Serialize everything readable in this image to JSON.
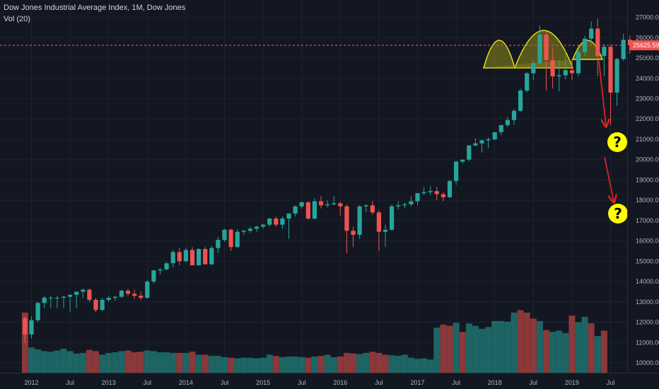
{
  "header": {
    "title": "Dow Jones Industrial Average Index, 1M, Dow Jones",
    "volume_label": "Vol (20)"
  },
  "colors": {
    "background": "#131722",
    "up": "#26a69a",
    "down": "#ef5350",
    "grid": "#1e2230",
    "price_line": "#ef5350",
    "pattern_fill": "#8f8c1a",
    "pattern_stroke": "#e6e21a",
    "arrow": "#e02020",
    "question_fill": "#ffff00"
  },
  "chart_data": {
    "type": "candlestick",
    "symbol": "Dow Jones Industrial Average Index",
    "interval": "1M",
    "y_axis": {
      "ticks": [
        10000,
        11000,
        12000,
        13000,
        14000,
        15000,
        16000,
        17000,
        18000,
        19000,
        20000,
        21000,
        22000,
        23000,
        24000,
        25000,
        26000,
        27000
      ],
      "tick_labels": [
        "10000.00",
        "11000.00",
        "12000.00",
        "13000.00",
        "14000.00",
        "15000.00",
        "16000.00",
        "17000.00",
        "18000.00",
        "19000.00",
        "20000.00",
        "21000.00",
        "22000.00",
        "23000.00",
        "24000.00",
        "25000.00",
        "26000.00",
        "27000.00"
      ]
    },
    "x_axis": {
      "labels": [
        "2012",
        "Jul",
        "2013",
        "Jul",
        "2014",
        "Jul",
        "2015",
        "Jul",
        "2016",
        "Jul",
        "2017",
        "Jul",
        "2018",
        "Jul",
        "2019",
        "Jul"
      ],
      "label_months": [
        0,
        6,
        12,
        18,
        24,
        30,
        36,
        42,
        48,
        54,
        60,
        66,
        72,
        78,
        84,
        90
      ]
    },
    "last_price": 25625.59,
    "last_price_label": "25625.59",
    "candles": [
      {
        "m": -1,
        "o": 12200,
        "h": 12300,
        "l": 11000,
        "c": 11400
      },
      {
        "m": 0,
        "o": 11400,
        "h": 12300,
        "l": 11200,
        "c": 12100
      },
      {
        "m": 1,
        "o": 12100,
        "h": 13000,
        "l": 12000,
        "c": 12950
      },
      {
        "m": 2,
        "o": 12950,
        "h": 13300,
        "l": 12700,
        "c": 13200
      },
      {
        "m": 3,
        "o": 13200,
        "h": 13300,
        "l": 12700,
        "c": 13200
      },
      {
        "m": 4,
        "o": 13200,
        "h": 13300,
        "l": 12700,
        "c": 13200
      },
      {
        "m": 5,
        "o": 13200,
        "h": 13300,
        "l": 12700,
        "c": 13250
      },
      {
        "m": 6,
        "o": 13250,
        "h": 13350,
        "l": 12500,
        "c": 13350
      },
      {
        "m": 7,
        "o": 13350,
        "h": 13500,
        "l": 12700,
        "c": 13500
      },
      {
        "m": 8,
        "o": 13500,
        "h": 13650,
        "l": 13200,
        "c": 13600
      },
      {
        "m": 9,
        "o": 13600,
        "h": 13650,
        "l": 13000,
        "c": 13100
      },
      {
        "m": 10,
        "o": 13100,
        "h": 13200,
        "l": 12500,
        "c": 12600
      },
      {
        "m": 11,
        "o": 12600,
        "h": 13200,
        "l": 12550,
        "c": 13100
      },
      {
        "m": 12,
        "o": 13100,
        "h": 13300,
        "l": 13000,
        "c": 13200
      },
      {
        "m": 13,
        "o": 13200,
        "h": 13300,
        "l": 13050,
        "c": 13250
      },
      {
        "m": 14,
        "o": 13250,
        "h": 13600,
        "l": 13200,
        "c": 13550
      },
      {
        "m": 15,
        "o": 13550,
        "h": 13650,
        "l": 13300,
        "c": 13400
      },
      {
        "m": 16,
        "o": 13400,
        "h": 13600,
        "l": 13150,
        "c": 13300
      },
      {
        "m": 17,
        "o": 13300,
        "h": 13500,
        "l": 13100,
        "c": 13200
      },
      {
        "m": 18,
        "o": 13200,
        "h": 14100,
        "l": 13150,
        "c": 14000
      },
      {
        "m": 19,
        "o": 14000,
        "h": 14550,
        "l": 13900,
        "c": 14550
      },
      {
        "m": 20,
        "o": 14550,
        "h": 14650,
        "l": 14350,
        "c": 14600
      },
      {
        "m": 21,
        "o": 14600,
        "h": 14950,
        "l": 14550,
        "c": 14900
      },
      {
        "m": 22,
        "o": 14900,
        "h": 15550,
        "l": 14700,
        "c": 15450
      },
      {
        "m": 23,
        "o": 15450,
        "h": 15650,
        "l": 14800,
        "c": 15000
      },
      {
        "m": 24,
        "o": 15000,
        "h": 15650,
        "l": 14950,
        "c": 15550
      },
      {
        "m": 25,
        "o": 15550,
        "h": 15700,
        "l": 14800,
        "c": 14800
      },
      {
        "m": 26,
        "o": 14800,
        "h": 15650,
        "l": 14800,
        "c": 15600
      },
      {
        "m": 27,
        "o": 15600,
        "h": 15700,
        "l": 14850,
        "c": 14850
      },
      {
        "m": 28,
        "o": 14850,
        "h": 15750,
        "l": 14800,
        "c": 15650
      },
      {
        "m": 29,
        "o": 15650,
        "h": 16200,
        "l": 15400,
        "c": 16050
      },
      {
        "m": 30,
        "o": 16050,
        "h": 16600,
        "l": 15950,
        "c": 16550
      },
      {
        "m": 31,
        "o": 16550,
        "h": 16600,
        "l": 15500,
        "c": 15700
      },
      {
        "m": 32,
        "o": 15700,
        "h": 16600,
        "l": 15650,
        "c": 16450
      },
      {
        "m": 33,
        "o": 16450,
        "h": 16550,
        "l": 16300,
        "c": 16500
      },
      {
        "m": 34,
        "o": 16500,
        "h": 16700,
        "l": 16400,
        "c": 16600
      },
      {
        "m": 35,
        "o": 16600,
        "h": 16750,
        "l": 16450,
        "c": 16700
      },
      {
        "m": 36,
        "o": 16700,
        "h": 16850,
        "l": 16600,
        "c": 16800
      },
      {
        "m": 37,
        "o": 16800,
        "h": 17150,
        "l": 16700,
        "c": 17100
      },
      {
        "m": 38,
        "o": 17100,
        "h": 17200,
        "l": 16700,
        "c": 16800
      },
      {
        "m": 39,
        "o": 16800,
        "h": 17200,
        "l": 16600,
        "c": 17100
      },
      {
        "m": 40,
        "o": 17100,
        "h": 17350,
        "l": 16100,
        "c": 17350
      },
      {
        "m": 41,
        "o": 17350,
        "h": 17750,
        "l": 17200,
        "c": 17700
      },
      {
        "m": 42,
        "o": 17700,
        "h": 17950,
        "l": 17600,
        "c": 17900
      },
      {
        "m": 43,
        "o": 17900,
        "h": 17950,
        "l": 17050,
        "c": 17100
      },
      {
        "m": 44,
        "o": 17100,
        "h": 18100,
        "l": 17050,
        "c": 17950
      },
      {
        "m": 45,
        "o": 17950,
        "h": 18200,
        "l": 17600,
        "c": 17750
      },
      {
        "m": 46,
        "o": 17750,
        "h": 18000,
        "l": 17650,
        "c": 17800
      },
      {
        "m": 47,
        "o": 17800,
        "h": 18200,
        "l": 17750,
        "c": 17850
      },
      {
        "m": 48,
        "o": 17850,
        "h": 17950,
        "l": 17250,
        "c": 17700
      },
      {
        "m": 49,
        "o": 17700,
        "h": 17800,
        "l": 15400,
        "c": 16500
      },
      {
        "m": 50,
        "o": 16500,
        "h": 16700,
        "l": 15700,
        "c": 16300
      },
      {
        "m": 51,
        "o": 16300,
        "h": 17750,
        "l": 16100,
        "c": 17700
      },
      {
        "m": 52,
        "o": 17700,
        "h": 17800,
        "l": 17400,
        "c": 17750
      },
      {
        "m": 53,
        "o": 17750,
        "h": 17950,
        "l": 17300,
        "c": 17400
      },
      {
        "m": 54,
        "o": 17400,
        "h": 17500,
        "l": 15500,
        "c": 16450
      },
      {
        "m": 55,
        "o": 16450,
        "h": 16800,
        "l": 15700,
        "c": 16550
      },
      {
        "m": 56,
        "o": 16550,
        "h": 17800,
        "l": 16500,
        "c": 17700
      },
      {
        "m": 57,
        "o": 17700,
        "h": 17950,
        "l": 17550,
        "c": 17750
      },
      {
        "m": 58,
        "o": 17750,
        "h": 17900,
        "l": 17600,
        "c": 17800
      },
      {
        "m": 59,
        "o": 17800,
        "h": 18200,
        "l": 17700,
        "c": 17950
      },
      {
        "m": 60,
        "o": 17950,
        "h": 18350,
        "l": 17750,
        "c": 18350
      },
      {
        "m": 61,
        "o": 18350,
        "h": 18650,
        "l": 18250,
        "c": 18400
      },
      {
        "m": 62,
        "o": 18400,
        "h": 18700,
        "l": 18250,
        "c": 18450
      },
      {
        "m": 63,
        "o": 18450,
        "h": 18650,
        "l": 18000,
        "c": 18300
      },
      {
        "m": 64,
        "o": 18300,
        "h": 18400,
        "l": 17950,
        "c": 18150
      },
      {
        "m": 65,
        "o": 18150,
        "h": 19000,
        "l": 18100,
        "c": 18950
      },
      {
        "m": 66,
        "o": 18950,
        "h": 19950,
        "l": 18750,
        "c": 19900
      },
      {
        "m": 67,
        "o": 19900,
        "h": 20000,
        "l": 19800,
        "c": 20000
      },
      {
        "m": 68,
        "o": 20000,
        "h": 20700,
        "l": 19900,
        "c": 20700
      },
      {
        "m": 69,
        "o": 20700,
        "h": 21050,
        "l": 20650,
        "c": 20800
      },
      {
        "m": 70,
        "o": 20800,
        "h": 21000,
        "l": 20350,
        "c": 20950
      },
      {
        "m": 71,
        "o": 20950,
        "h": 21100,
        "l": 20550,
        "c": 21000
      },
      {
        "m": 72,
        "o": 21000,
        "h": 21350,
        "l": 20950,
        "c": 21350
      },
      {
        "m": 73,
        "o": 21350,
        "h": 21700,
        "l": 21200,
        "c": 21700
      },
      {
        "m": 74,
        "o": 21700,
        "h": 22100,
        "l": 21600,
        "c": 21950
      },
      {
        "m": 75,
        "o": 21950,
        "h": 22500,
        "l": 21700,
        "c": 22400
      },
      {
        "m": 76,
        "o": 22400,
        "h": 23500,
        "l": 22350,
        "c": 23400
      },
      {
        "m": 77,
        "o": 23400,
        "h": 24300,
        "l": 23300,
        "c": 24250
      },
      {
        "m": 78,
        "o": 24250,
        "h": 24900,
        "l": 23900,
        "c": 24750
      },
      {
        "m": 79,
        "o": 24750,
        "h": 26600,
        "l": 24700,
        "c": 26150
      },
      {
        "m": 80,
        "o": 26150,
        "h": 26300,
        "l": 23400,
        "c": 24900
      },
      {
        "m": 81,
        "o": 24900,
        "h": 25500,
        "l": 23500,
        "c": 24100
      },
      {
        "m": 82,
        "o": 24100,
        "h": 24900,
        "l": 23350,
        "c": 24150
      },
      {
        "m": 83,
        "o": 24150,
        "h": 25400,
        "l": 23950,
        "c": 24400
      },
      {
        "m": 84,
        "o": 24400,
        "h": 24850,
        "l": 23900,
        "c": 24250
      },
      {
        "m": 85,
        "o": 24250,
        "h": 25400,
        "l": 24100,
        "c": 25300
      },
      {
        "m": 86,
        "o": 25300,
        "h": 26100,
        "l": 25100,
        "c": 25950
      },
      {
        "m": 87,
        "o": 25950,
        "h": 26800,
        "l": 25700,
        "c": 26450
      },
      {
        "m": 88,
        "o": 26450,
        "h": 26950,
        "l": 24100,
        "c": 25100
      },
      {
        "m": 89,
        "o": 25100,
        "h": 25700,
        "l": 24100,
        "c": 25550
      },
      {
        "m": 90,
        "o": 25550,
        "h": 25650,
        "l": 21700,
        "c": 23300
      },
      {
        "m": 91,
        "o": 23300,
        "h": 25000,
        "l": 22650,
        "c": 24950
      },
      {
        "m": 92,
        "o": 24950,
        "h": 26200,
        "l": 24850,
        "c": 25900
      },
      {
        "m": 93,
        "o": 25900,
        "h": 26100,
        "l": 25200,
        "c": 25625.59
      }
    ],
    "volume": [
      {
        "m": -1,
        "v": 1.0
      },
      {
        "m": 0,
        "v": 0.42
      },
      {
        "m": 1,
        "v": 0.39
      },
      {
        "m": 2,
        "v": 0.36
      },
      {
        "m": 3,
        "v": 0.35
      },
      {
        "m": 4,
        "v": 0.37
      },
      {
        "m": 5,
        "v": 0.4
      },
      {
        "m": 6,
        "v": 0.36
      },
      {
        "m": 7,
        "v": 0.32
      },
      {
        "m": 8,
        "v": 0.33
      },
      {
        "m": 9,
        "v": 0.38
      },
      {
        "m": 10,
        "v": 0.36
      },
      {
        "m": 11,
        "v": 0.3
      },
      {
        "m": 12,
        "v": 0.33
      },
      {
        "m": 13,
        "v": 0.34
      },
      {
        "m": 14,
        "v": 0.36
      },
      {
        "m": 15,
        "v": 0.37
      },
      {
        "m": 16,
        "v": 0.34
      },
      {
        "m": 17,
        "v": 0.35
      },
      {
        "m": 18,
        "v": 0.37
      },
      {
        "m": 19,
        "v": 0.36
      },
      {
        "m": 20,
        "v": 0.34
      },
      {
        "m": 21,
        "v": 0.34
      },
      {
        "m": 22,
        "v": 0.33
      },
      {
        "m": 23,
        "v": 0.33
      },
      {
        "m": 24,
        "v": 0.33
      },
      {
        "m": 25,
        "v": 0.35
      },
      {
        "m": 26,
        "v": 0.3
      },
      {
        "m": 27,
        "v": 0.3
      },
      {
        "m": 28,
        "v": 0.28
      },
      {
        "m": 29,
        "v": 0.28
      },
      {
        "m": 30,
        "v": 0.26
      },
      {
        "m": 31,
        "v": 0.25
      },
      {
        "m": 32,
        "v": 0.24
      },
      {
        "m": 33,
        "v": 0.25
      },
      {
        "m": 34,
        "v": 0.25
      },
      {
        "m": 35,
        "v": 0.24
      },
      {
        "m": 36,
        "v": 0.25
      },
      {
        "m": 37,
        "v": 0.3
      },
      {
        "m": 38,
        "v": 0.28
      },
      {
        "m": 39,
        "v": 0.26
      },
      {
        "m": 40,
        "v": 0.27
      },
      {
        "m": 41,
        "v": 0.27
      },
      {
        "m": 42,
        "v": 0.26
      },
      {
        "m": 43,
        "v": 0.25
      },
      {
        "m": 44,
        "v": 0.27
      },
      {
        "m": 45,
        "v": 0.28
      },
      {
        "m": 46,
        "v": 0.3
      },
      {
        "m": 47,
        "v": 0.26
      },
      {
        "m": 48,
        "v": 0.27
      },
      {
        "m": 49,
        "v": 0.33
      },
      {
        "m": 50,
        "v": 0.32
      },
      {
        "m": 51,
        "v": 0.31
      },
      {
        "m": 52,
        "v": 0.33
      },
      {
        "m": 53,
        "v": 0.35
      },
      {
        "m": 54,
        "v": 0.33
      },
      {
        "m": 55,
        "v": 0.3
      },
      {
        "m": 56,
        "v": 0.29
      },
      {
        "m": 57,
        "v": 0.28
      },
      {
        "m": 58,
        "v": 0.3
      },
      {
        "m": 59,
        "v": 0.25
      },
      {
        "m": 60,
        "v": 0.23
      },
      {
        "m": 61,
        "v": 0.24
      },
      {
        "m": 62,
        "v": 0.22
      },
      {
        "m": 63,
        "v": 0.75
      },
      {
        "m": 64,
        "v": 0.8
      },
      {
        "m": 65,
        "v": 0.78
      },
      {
        "m": 66,
        "v": 0.83
      },
      {
        "m": 67,
        "v": 0.68
      },
      {
        "m": 68,
        "v": 0.82
      },
      {
        "m": 69,
        "v": 0.78
      },
      {
        "m": 70,
        "v": 0.73
      },
      {
        "m": 71,
        "v": 0.76
      },
      {
        "m": 72,
        "v": 0.86
      },
      {
        "m": 73,
        "v": 0.86
      },
      {
        "m": 74,
        "v": 0.85
      },
      {
        "m": 75,
        "v": 1.0
      },
      {
        "m": 76,
        "v": 1.04
      },
      {
        "m": 77,
        "v": 1.0
      },
      {
        "m": 78,
        "v": 0.9
      },
      {
        "m": 79,
        "v": 0.86
      },
      {
        "m": 80,
        "v": 0.71
      },
      {
        "m": 81,
        "v": 0.68
      },
      {
        "m": 82,
        "v": 0.7
      },
      {
        "m": 83,
        "v": 0.66
      },
      {
        "m": 84,
        "v": 0.95
      },
      {
        "m": 85,
        "v": 0.84
      },
      {
        "m": 86,
        "v": 0.93
      },
      {
        "m": 87,
        "v": 0.82
      },
      {
        "m": 88,
        "v": 0.61
      },
      {
        "m": 89,
        "v": 0.7
      }
    ],
    "volume_colors": [
      "down",
      "up",
      "up",
      "up",
      "up",
      "up",
      "up",
      "up",
      "up",
      "up",
      "down",
      "down",
      "up",
      "up",
      "up",
      "up",
      "down",
      "down",
      "down",
      "up",
      "up",
      "up",
      "up",
      "up",
      "down",
      "up",
      "down",
      "up",
      "down",
      "up",
      "up",
      "up",
      "down",
      "up",
      "up",
      "up",
      "up",
      "up",
      "up",
      "down",
      "up",
      "up",
      "up",
      "up",
      "down",
      "up",
      "down",
      "up",
      "up",
      "down",
      "down",
      "down",
      "up",
      "up",
      "down",
      "down",
      "down",
      "up",
      "up",
      "up",
      "up",
      "up",
      "up",
      "up",
      "up",
      "down",
      "down",
      "up",
      "down",
      "up",
      "up",
      "up",
      "up",
      "up",
      "up",
      "up",
      "up",
      "down",
      "down",
      "down",
      "up",
      "down",
      "up",
      "up",
      "up",
      "down",
      "up",
      "up",
      "down",
      "up",
      "down"
    ],
    "annotations": {
      "pattern": "head and shoulders",
      "question_marks": [
        "?",
        "?"
      ]
    }
  }
}
